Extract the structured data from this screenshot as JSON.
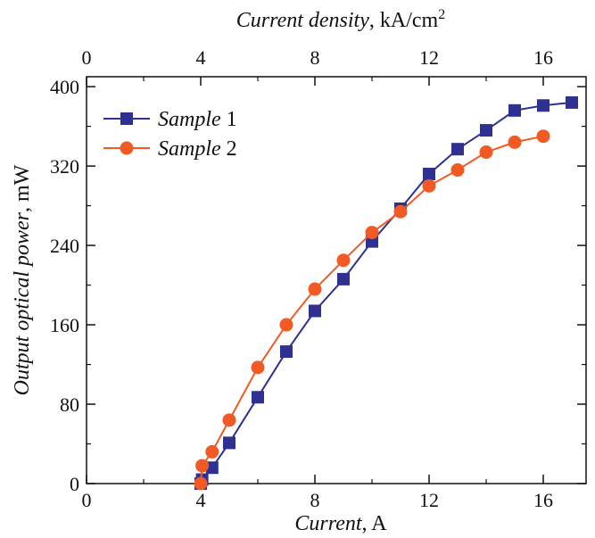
{
  "chart_data": {
    "type": "line",
    "xlabel": "Current, A",
    "xlabel_italic": "Current",
    "xlabel_rest": ", A",
    "ylabel": "Output optical power, mW",
    "ylabel_italic": "Output optical power",
    "ylabel_rest": ", mW",
    "top_xlabel": "Current density, kA/cm2",
    "top_xlabel_italic": "Current density",
    "top_xlabel_rest": ", kA/cm",
    "top_xlabel_sup": "2",
    "xlim": [
      0,
      17.5
    ],
    "ylim": [
      0,
      410
    ],
    "top_xlim": [
      0,
      17.5
    ],
    "x_ticks": [
      "0",
      "4",
      "8",
      "12",
      "16"
    ],
    "y_ticks": [
      "0",
      "80",
      "160",
      "240",
      "320",
      "400"
    ],
    "top_ticks": [
      "0",
      "4",
      "8",
      "12",
      "16"
    ],
    "grid": false,
    "legend_position": "top-left",
    "series": [
      {
        "name": "Sample 1",
        "name_italic": "Sample",
        "name_rest": " 1",
        "color": "#2e3192",
        "marker": "square",
        "x": [
          4.0,
          4.05,
          4.4,
          5.0,
          6.0,
          7.0,
          8.0,
          9.0,
          10.0,
          11.0,
          12.0,
          13.0,
          14.0,
          15.0,
          16.0,
          17.0
        ],
        "y": [
          0,
          4,
          16,
          41,
          87,
          133,
          174,
          206,
          244,
          277,
          312,
          337,
          356,
          376,
          381,
          384
        ]
      },
      {
        "name": "Sample 2",
        "name_italic": "Sample",
        "name_rest": " 2",
        "color": "#f15a24",
        "marker": "circle",
        "x": [
          4.0,
          4.05,
          4.4,
          5.0,
          6.0,
          7.0,
          8.0,
          9.0,
          10.0,
          11.0,
          12.0,
          13.0,
          14.0,
          15.0,
          16.0
        ],
        "y": [
          0,
          18,
          32,
          64,
          117,
          160,
          196,
          225,
          253,
          274,
          300,
          316,
          334,
          344,
          350
        ]
      }
    ]
  }
}
